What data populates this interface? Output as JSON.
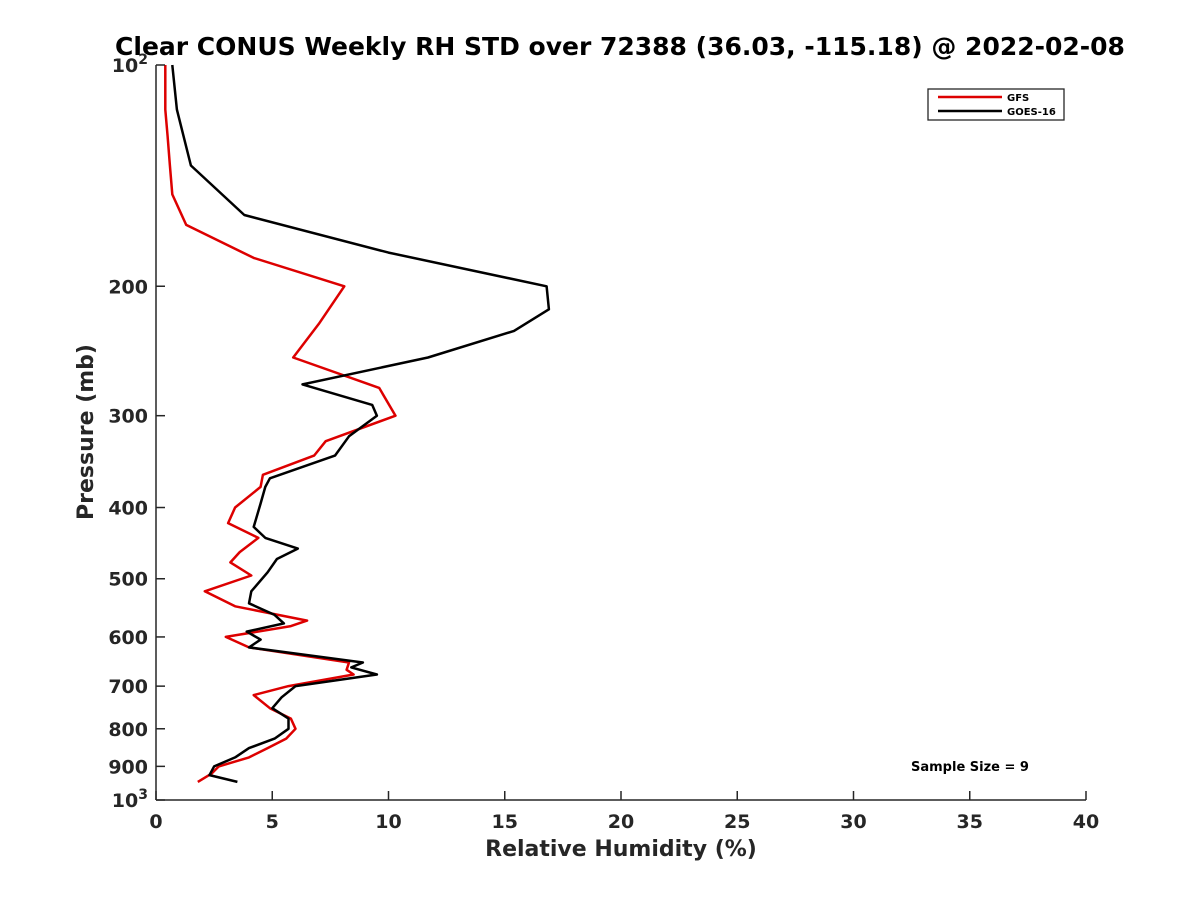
{
  "chart_data": {
    "type": "line",
    "title": "Clear CONUS Weekly RH STD over 72388 (36.03, -115.18) @ 2022-02-08",
    "xlabel": "Relative Humidity (%)",
    "ylabel": "Pressure (mb)",
    "xlim": [
      0,
      40
    ],
    "ylim": [
      100,
      1000
    ],
    "y_scale": "log",
    "y_reversed": true,
    "x_ticks": [
      0,
      5,
      10,
      15,
      20,
      25,
      30,
      35,
      40
    ],
    "x_tick_labels": [
      "0",
      "5",
      "10",
      "15",
      "20",
      "25",
      "30",
      "35",
      "40"
    ],
    "y_ticks": [
      {
        "value": 100,
        "label": "10",
        "sup": "2"
      },
      {
        "value": 200,
        "label": "200",
        "sup": ""
      },
      {
        "value": 300,
        "label": "300",
        "sup": ""
      },
      {
        "value": 400,
        "label": "400",
        "sup": ""
      },
      {
        "value": 500,
        "label": "500",
        "sup": ""
      },
      {
        "value": 600,
        "label": "600",
        "sup": ""
      },
      {
        "value": 700,
        "label": "700",
        "sup": ""
      },
      {
        "value": 800,
        "label": "800",
        "sup": ""
      },
      {
        "value": 900,
        "label": "900",
        "sup": ""
      },
      {
        "value": 1000,
        "label": "10",
        "sup": "3"
      }
    ],
    "grid": false,
    "legend_position": "top-right",
    "annotation": "Sample Size = 9",
    "series": [
      {
        "name": "GFS",
        "color": "#dd0000",
        "points": [
          [
            0.4,
            100
          ],
          [
            0.4,
            115
          ],
          [
            0.5,
            125
          ],
          [
            0.6,
            137
          ],
          [
            0.7,
            150
          ],
          [
            1.3,
            165
          ],
          [
            4.2,
            183
          ],
          [
            8.1,
            200
          ],
          [
            7.0,
            225
          ],
          [
            5.9,
            250
          ],
          [
            9.6,
            275
          ],
          [
            10.3,
            300
          ],
          [
            7.3,
            325
          ],
          [
            6.8,
            340
          ],
          [
            4.6,
            361
          ],
          [
            4.5,
            375
          ],
          [
            3.4,
            400
          ],
          [
            3.1,
            420
          ],
          [
            4.4,
            440
          ],
          [
            3.6,
            460
          ],
          [
            3.2,
            475
          ],
          [
            4.1,
            495
          ],
          [
            2.1,
            520
          ],
          [
            3.4,
            545
          ],
          [
            6.5,
            570
          ],
          [
            5.8,
            580
          ],
          [
            3.0,
            600
          ],
          [
            4.0,
            620
          ],
          [
            8.3,
            650
          ],
          [
            8.2,
            665
          ],
          [
            8.5,
            675
          ],
          [
            5.7,
            700
          ],
          [
            4.2,
            720
          ],
          [
            4.9,
            750
          ],
          [
            5.8,
            775
          ],
          [
            6.0,
            800
          ],
          [
            5.6,
            825
          ],
          [
            4.8,
            850
          ],
          [
            4.0,
            875
          ],
          [
            2.7,
            900
          ],
          [
            2.4,
            920
          ],
          [
            1.8,
            945
          ]
        ]
      },
      {
        "name": "GOES-16",
        "color": "#000000",
        "points": [
          [
            0.7,
            100
          ],
          [
            0.9,
            115
          ],
          [
            1.5,
            137
          ],
          [
            3.8,
            160
          ],
          [
            10.0,
            180
          ],
          [
            16.8,
            200
          ],
          [
            16.9,
            215
          ],
          [
            15.4,
            230
          ],
          [
            11.7,
            250
          ],
          [
            6.3,
            272
          ],
          [
            9.3,
            290
          ],
          [
            9.5,
            300
          ],
          [
            8.3,
            320
          ],
          [
            7.7,
            340
          ],
          [
            4.9,
            365
          ],
          [
            4.7,
            375
          ],
          [
            4.5,
            395
          ],
          [
            4.2,
            425
          ],
          [
            4.7,
            440
          ],
          [
            6.1,
            455
          ],
          [
            5.2,
            470
          ],
          [
            4.8,
            490
          ],
          [
            4.1,
            520
          ],
          [
            4.0,
            540
          ],
          [
            5.1,
            560
          ],
          [
            5.5,
            575
          ],
          [
            3.9,
            590
          ],
          [
            4.5,
            605
          ],
          [
            4.0,
            620
          ],
          [
            8.9,
            650
          ],
          [
            8.4,
            660
          ],
          [
            9.5,
            675
          ],
          [
            6.0,
            700
          ],
          [
            5.4,
            725
          ],
          [
            5.0,
            750
          ],
          [
            5.7,
            775
          ],
          [
            5.7,
            800
          ],
          [
            5.1,
            825
          ],
          [
            4.0,
            850
          ],
          [
            3.4,
            875
          ],
          [
            2.5,
            900
          ],
          [
            2.3,
            925
          ],
          [
            3.5,
            945
          ]
        ]
      }
    ]
  }
}
